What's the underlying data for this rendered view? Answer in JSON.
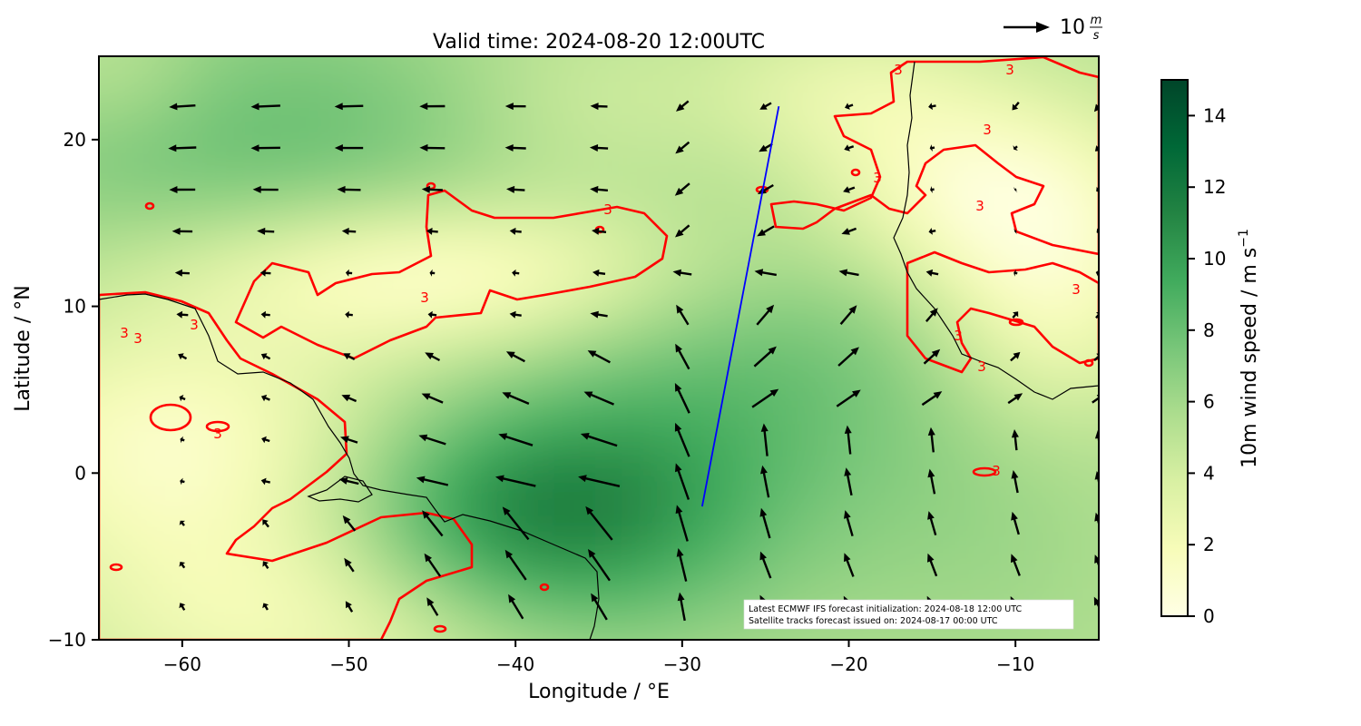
{
  "chart_data": {
    "type": "heatmap",
    "title": "Valid time: 2024-08-20 12:00UTC",
    "xlabel": "Longitude / °E",
    "ylabel": "Latitude / °N",
    "xlim": [
      -65,
      -5
    ],
    "ylim": [
      -10,
      25
    ],
    "x_ticks": [
      -60,
      -50,
      -40,
      -30,
      -20,
      -10
    ],
    "y_ticks": [
      -10,
      0,
      10,
      20
    ],
    "grid": false,
    "colormap": "YlGn",
    "colors": {
      "low": "#ffffe5",
      "mid": "#78c679",
      "high": "#004529",
      "contour": "#ff0000",
      "track": "#0000ff",
      "vectors": "#000000",
      "coastline": "#000000"
    },
    "colorbar": {
      "label": "10m wind speed / m s",
      "label_superscript": "−1",
      "range": [
        0,
        15
      ],
      "ticks": [
        0,
        2,
        4,
        6,
        8,
        10,
        12,
        14
      ]
    },
    "contour": {
      "level": 3,
      "label": "3"
    },
    "quiver_key": {
      "value": 10,
      "label_prefix": "10",
      "unit_num": "m",
      "unit_den": "s"
    },
    "wind_field_peak": {
      "lon": -38,
      "lat": -3,
      "speed": 13
    },
    "satellite_track": {
      "start": {
        "lon": -28.8,
        "lat": -2.0
      },
      "end": {
        "lon": -24.2,
        "lat": 22.0
      }
    },
    "annotation": [
      "Latest ECMWF IFS forecast initialization: 2024-08-18 12:00 UTC",
      "Satellite tracks forecast issued on: 2024-08-17 00:00 UTC"
    ]
  }
}
